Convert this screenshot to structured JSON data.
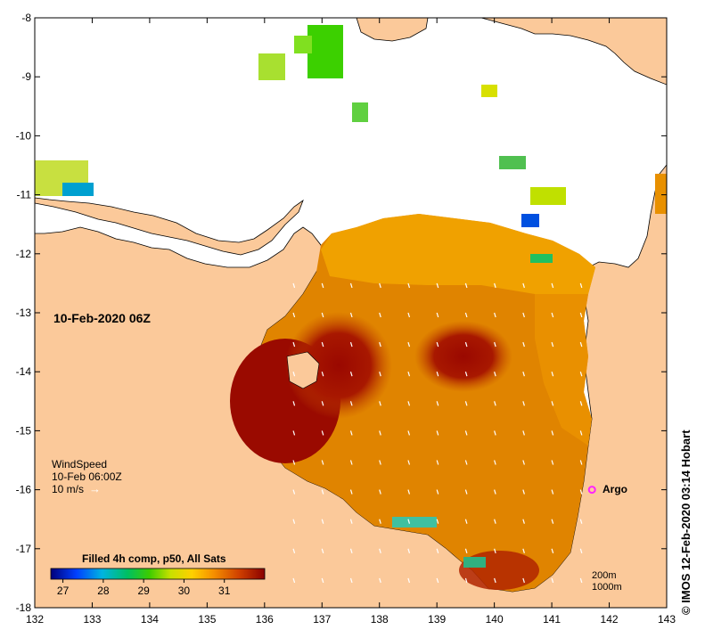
{
  "map": {
    "date_title": "10-Feb-2020 06Z",
    "lon_ticks": [
      132,
      133,
      134,
      135,
      136,
      137,
      138,
      139,
      140,
      141,
      142,
      143
    ],
    "lat_ticks": [
      -8,
      -9,
      -10,
      -11,
      -12,
      -13,
      -14,
      -15,
      -16,
      -17,
      -18
    ],
    "lon_range": [
      132,
      143
    ],
    "lat_range": [
      -18,
      -8
    ]
  },
  "wind_legend": {
    "title": "WindSpeed",
    "time": "10-Feb 06:00Z",
    "scale": "10 m/s",
    "arrow": "→"
  },
  "argo": {
    "label": "Argo",
    "lon": 141.7,
    "lat": -16.0
  },
  "colorbar": {
    "title": "Filled 4h comp, p50, All Sats",
    "ticks": [
      27,
      28,
      29,
      30,
      31
    ],
    "range": [
      26.7,
      32.0
    ]
  },
  "scale_notes": [
    "200m",
    "1000m"
  ],
  "credit": "© IMOS 12-Feb-2020 03:14 Hobart",
  "colors": {
    "land": "#fbc99a",
    "sst_hot": "#9a0a00",
    "sst_warm": "#d96a00",
    "sst_mid": "#f2a000",
    "no_data": "#ffffff",
    "argo": "#ff22ff"
  }
}
